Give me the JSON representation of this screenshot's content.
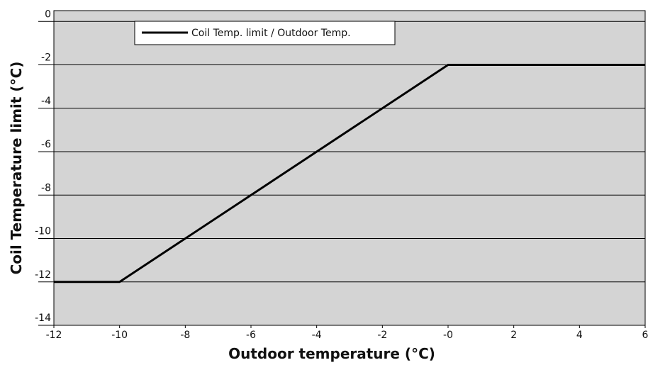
{
  "chart_data": {
    "type": "line",
    "x_label": "Outdoor temperature (°C)",
    "y_label": "Coil Temperature limit  (°C)",
    "x": [
      -12,
      -10,
      0,
      6
    ],
    "series": [
      {
        "name": "Coil Temp. limit / Outdoor Temp.",
        "color": "#000000",
        "values": [
          -12,
          -12,
          -2,
          -2
        ]
      }
    ],
    "xlim": [
      -12,
      6
    ],
    "xticks": [
      -12,
      -10,
      -8,
      -6,
      -4,
      -2,
      {
        "value": 0,
        "label": "-0"
      },
      2,
      4,
      6
    ],
    "ylim": [
      -14,
      0.5
    ],
    "yticks": [
      0,
      -2,
      -4,
      -6,
      -8,
      -10,
      -12,
      -14
    ],
    "grid": true,
    "legend": "top-left",
    "background": "#d4d4d4"
  }
}
